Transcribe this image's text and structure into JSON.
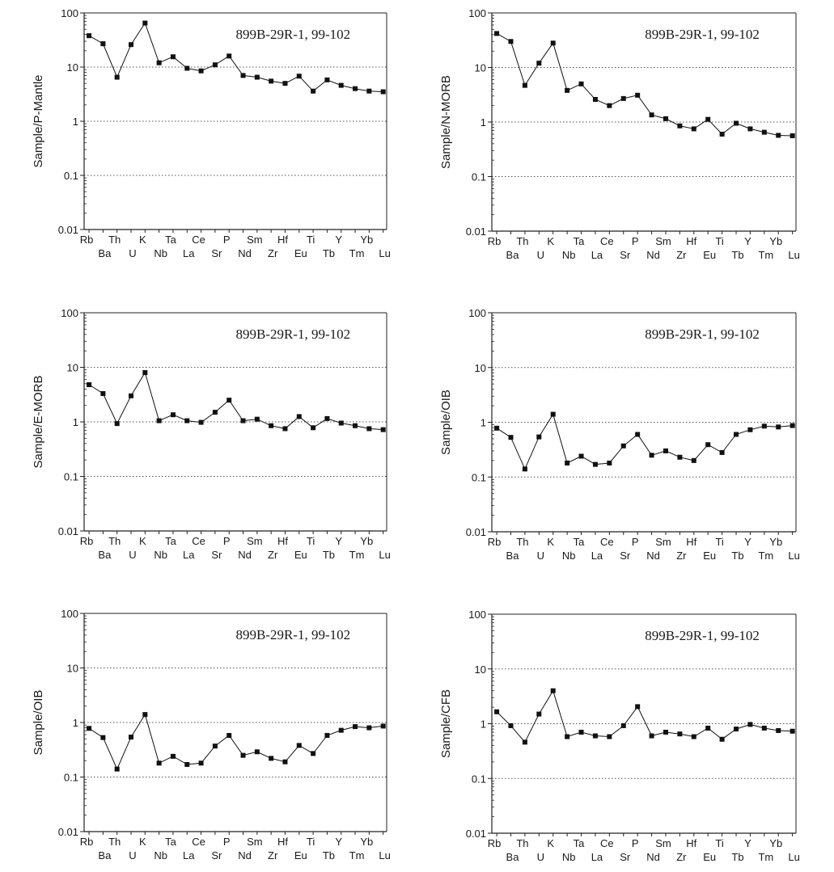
{
  "chart_data": [
    {
      "type": "line",
      "title": "899B-29R-1, 99-102",
      "ylabel": "Sample/P-Mantle",
      "yscale": "log",
      "ylim": [
        0.01,
        100
      ],
      "yticks": [
        "100",
        "10",
        "1",
        "0.1",
        "0.01"
      ],
      "grid": "horizontal dotted",
      "categories": [
        "Rb",
        "Ba",
        "Th",
        "U",
        "K",
        "Nb",
        "Ta",
        "La",
        "Ce",
        "Sr",
        "P",
        "Nd",
        "Sm",
        "Zr",
        "Hf",
        "Eu",
        "Ti",
        "Tb",
        "Y",
        "Tm",
        "Yb",
        "Lu"
      ],
      "values": [
        38,
        27,
        6.5,
        26,
        65,
        12,
        15.5,
        9.5,
        8.5,
        11,
        16,
        7,
        6.5,
        5.5,
        5,
        6.8,
        3.6,
        5.8,
        4.6,
        4,
        3.6,
        3.5
      ]
    },
    {
      "type": "line",
      "title": "899B-29R-1, 99-102",
      "ylabel": "Sample/N-MORB",
      "yscale": "log",
      "ylim": [
        0.01,
        100
      ],
      "yticks": [
        "100",
        "10",
        "1",
        "0.1",
        "0.01"
      ],
      "grid": "horizontal dotted",
      "categories": [
        "Rb",
        "Ba",
        "Th",
        "U",
        "K",
        "Nb",
        "Ta",
        "La",
        "Ce",
        "Sr",
        "P",
        "Nd",
        "Sm",
        "Zr",
        "Hf",
        "Eu",
        "Ti",
        "Tb",
        "Y",
        "Tm",
        "Yb",
        "Lu"
      ],
      "values": [
        42,
        30,
        4.7,
        12,
        28,
        3.8,
        5,
        2.6,
        2,
        2.7,
        3.1,
        1.35,
        1.15,
        0.85,
        0.75,
        1.12,
        0.6,
        0.95,
        0.75,
        0.65,
        0.57,
        0.56
      ]
    },
    {
      "type": "line",
      "title": "899B-29R-1, 99-102",
      "ylabel": "Sample/E-MORB",
      "yscale": "log",
      "ylim": [
        0.01,
        100
      ],
      "yticks": [
        "100",
        "10",
        "1",
        "0.1",
        "0.01"
      ],
      "grid": "horizontal dotted",
      "categories": [
        "Rb",
        "Ba",
        "Th",
        "U",
        "K",
        "Nb",
        "Ta",
        "La",
        "Ce",
        "Sr",
        "P",
        "Nd",
        "Sm",
        "Zr",
        "Hf",
        "Eu",
        "Ti",
        "Tb",
        "Y",
        "Tm",
        "Yb",
        "Lu"
      ],
      "values": [
        4.8,
        3.3,
        0.93,
        3,
        8,
        1.05,
        1.35,
        1.05,
        0.98,
        1.5,
        2.5,
        1.05,
        1.12,
        0.85,
        0.75,
        1.25,
        0.78,
        1.15,
        0.95,
        0.85,
        0.75,
        0.72
      ]
    },
    {
      "type": "line",
      "title": "899B-29R-1, 99-102",
      "ylabel": "Sample/OIB",
      "yscale": "log",
      "ylim": [
        0.01,
        100
      ],
      "yticks": [
        "100",
        "10",
        "1",
        "0.1",
        "0.01"
      ],
      "grid": "horizontal dotted",
      "categories": [
        "Rb",
        "Ba",
        "Th",
        "U",
        "K",
        "Nb",
        "Ta",
        "La",
        "Ce",
        "Sr",
        "P",
        "Nd",
        "Sm",
        "Zr",
        "Hf",
        "Eu",
        "Ti",
        "Tb",
        "Y",
        "Tm",
        "Yb",
        "Lu"
      ],
      "values": [
        0.78,
        0.53,
        0.14,
        0.54,
        1.4,
        0.18,
        0.24,
        0.17,
        0.18,
        0.37,
        0.6,
        0.25,
        0.3,
        0.23,
        0.2,
        0.39,
        0.28,
        0.6,
        0.73,
        0.85,
        0.82,
        0.87
      ]
    },
    {
      "type": "line",
      "title": "899B-29R-1, 99-102",
      "ylabel": "Sample/OIB",
      "yscale": "log",
      "ylim": [
        0.01,
        100
      ],
      "yticks": [
        "100",
        "10",
        "1",
        "0.1",
        "0.01"
      ],
      "grid": "horizontal dotted",
      "categories": [
        "Rb",
        "Ba",
        "Th",
        "U",
        "K",
        "Nb",
        "Ta",
        "La",
        "Ce",
        "Sr",
        "P",
        "Nd",
        "Sm",
        "Zr",
        "Hf",
        "Eu",
        "Ti",
        "Tb",
        "Y",
        "Tm",
        "Yb",
        "Lu"
      ],
      "values": [
        0.78,
        0.53,
        0.14,
        0.54,
        1.4,
        0.18,
        0.24,
        0.17,
        0.18,
        0.37,
        0.58,
        0.25,
        0.29,
        0.22,
        0.19,
        0.38,
        0.27,
        0.58,
        0.72,
        0.84,
        0.8,
        0.86
      ]
    },
    {
      "type": "line",
      "title": "899B-29R-1, 99-102",
      "ylabel": "Sample/CFB",
      "yscale": "log",
      "ylim": [
        0.01,
        100
      ],
      "yticks": [
        "100",
        "10",
        "1",
        "0.1",
        "0.01"
      ],
      "grid": "horizontal dotted",
      "categories": [
        "Rb",
        "Ba",
        "Th",
        "U",
        "K",
        "Nb",
        "Ta",
        "La",
        "Ce",
        "Sr",
        "P",
        "Nd",
        "Sm",
        "Zr",
        "Hf",
        "Eu",
        "Ti",
        "Tb",
        "Y",
        "Tm",
        "Yb",
        "Lu"
      ],
      "values": [
        1.65,
        0.92,
        0.46,
        1.5,
        4,
        0.58,
        0.7,
        0.6,
        0.58,
        0.92,
        2.05,
        0.6,
        0.7,
        0.65,
        0.58,
        0.83,
        0.52,
        0.8,
        0.97,
        0.83,
        0.75,
        0.73
      ]
    }
  ]
}
